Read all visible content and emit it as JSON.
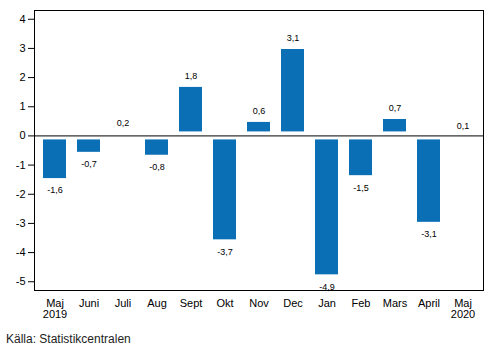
{
  "chart_data": {
    "type": "bar",
    "categories": [
      "Maj\n2019",
      "Juni",
      "Juli",
      "Aug",
      "Sept",
      "Okt",
      "Nov",
      "Dec",
      "Jan",
      "Feb",
      "Mars",
      "April",
      "Maj\n2020"
    ],
    "values": [
      -1.6,
      -0.7,
      0.2,
      -0.8,
      1.8,
      -3.7,
      0.6,
      3.1,
      -4.9,
      -1.5,
      0.7,
      -3.1,
      0.1
    ],
    "value_labels": [
      "-1,6",
      "-0,7",
      "0,2",
      "-0,8",
      "1,8",
      "-3,7",
      "0,6",
      "3,1",
      "-4,9",
      "-1,5",
      "0,7",
      "-3,1",
      "0,1"
    ],
    "data_labels": true,
    "color": "#0b6fb5",
    "ylim": [
      -5.3,
      4.3
    ],
    "yticks": [
      -5,
      -4,
      -3,
      -2,
      -1,
      0,
      1,
      2,
      3,
      4
    ],
    "grid": false,
    "caption": "Källa: Statistikcentralen"
  }
}
